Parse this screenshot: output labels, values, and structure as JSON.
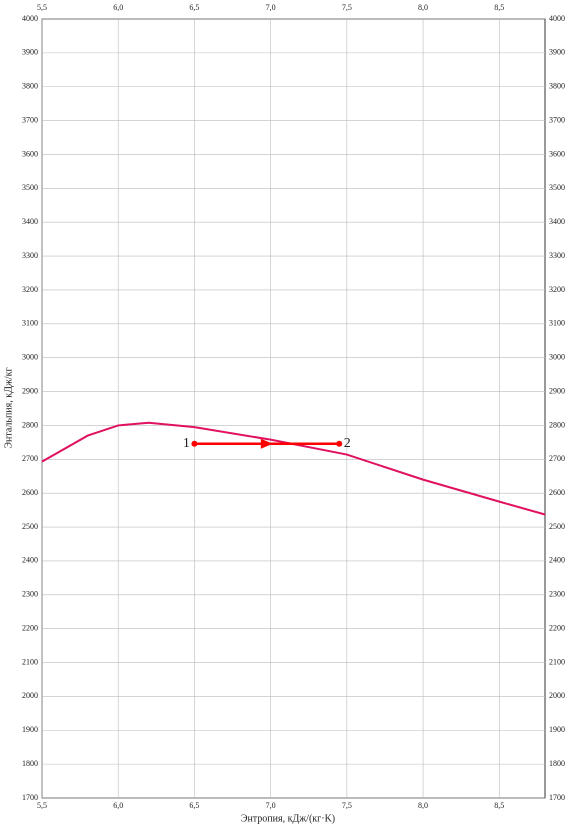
{
  "chart_data": {
    "type": "line",
    "x_label": "Энтропия, кДж/(кг·K)",
    "y_label": "Энтальпия, кДж/кг",
    "xlim": [
      5.5,
      8.8
    ],
    "ylim": [
      1700,
      4000
    ],
    "xticks": [
      {
        "value": 5.5,
        "label": "5,5"
      },
      {
        "value": 6.0,
        "label": "6,0"
      },
      {
        "value": 6.5,
        "label": "6,5"
      },
      {
        "value": 7.0,
        "label": "7,0"
      },
      {
        "value": 7.5,
        "label": "7,5"
      },
      {
        "value": 8.0,
        "label": "8,0"
      },
      {
        "value": 8.5,
        "label": "8,5"
      }
    ],
    "yticks": [
      1700,
      1800,
      1900,
      2000,
      2100,
      2200,
      2300,
      2400,
      2500,
      2600,
      2700,
      2800,
      2900,
      3000,
      3100,
      3200,
      3300,
      3400,
      3500,
      3600,
      3700,
      3800,
      3900,
      4000
    ],
    "grid": true,
    "series": [
      {
        "color": "#e0115f",
        "x": [
          5.5,
          5.8,
          6.0,
          6.2,
          6.5,
          7.0,
          7.5,
          8.0,
          8.5,
          8.8
        ],
        "values": [
          2693,
          2770,
          2800,
          2808,
          2795,
          2758,
          2714,
          2640,
          2575,
          2537
        ]
      },
      {
        "color": "#ff0000",
        "x": [
          6.5,
          7.45
        ],
        "values": [
          2746,
          2746
        ],
        "point_labels": [
          "1",
          "2"
        ]
      }
    ]
  }
}
